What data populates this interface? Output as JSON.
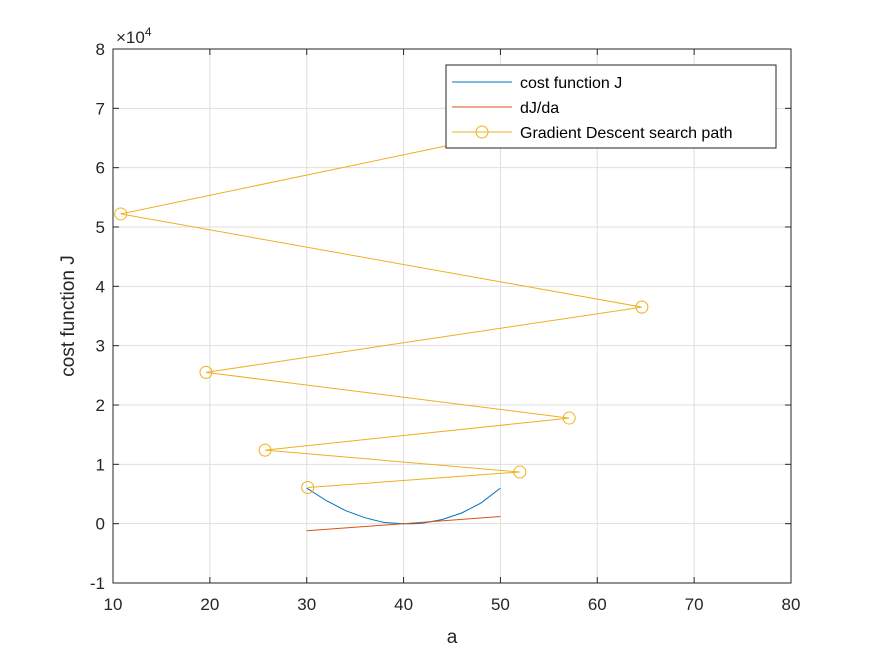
{
  "chart_data": {
    "type": "line",
    "xlabel": "a",
    "ylabel": "cost function J",
    "exponent_base": "×10",
    "exponent_power": "4",
    "xlim": [
      10,
      80
    ],
    "ylim": [
      -1,
      8
    ],
    "x_ticks": [
      10,
      20,
      30,
      40,
      50,
      60,
      70,
      80
    ],
    "y_ticks": [
      -1,
      0,
      1,
      2,
      3,
      4,
      5,
      6,
      7,
      8
    ],
    "grid": true,
    "legend_position": "top-right",
    "series": [
      {
        "name": "cost function J",
        "color": "#0072BD",
        "marker": "none",
        "x": [
          30,
          32,
          34,
          36,
          38,
          40,
          41,
          42,
          44,
          46,
          48,
          50
        ],
        "y": [
          0.6,
          0.39,
          0.22,
          0.1,
          0.02,
          0.0,
          0.0,
          0.01,
          0.07,
          0.18,
          0.35,
          0.6
        ]
      },
      {
        "name": "dJ/da",
        "color": "#D95319",
        "marker": "none",
        "x": [
          30,
          50
        ],
        "y": [
          -0.12,
          0.12
        ]
      },
      {
        "name": "Gradient Descent search path",
        "color": "#EDB120",
        "marker": "circle",
        "x": [
          30.1,
          52.0,
          25.7,
          57.1,
          19.6,
          64.6,
          10.8,
          76.5
        ],
        "y": [
          0.61,
          0.87,
          1.24,
          1.78,
          2.55,
          3.65,
          5.22,
          7.46
        ]
      }
    ]
  }
}
